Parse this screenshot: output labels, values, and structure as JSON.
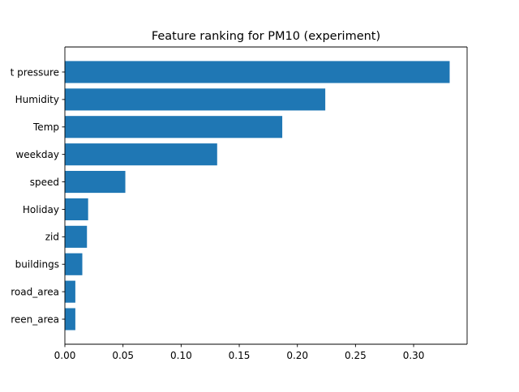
{
  "chart_data": {
    "type": "bar",
    "orientation": "horizontal",
    "title": "Feature ranking for PM10 (experiment)",
    "xlabel": "",
    "ylabel": "",
    "bar_color": "#1f77b4",
    "xlim": [
      0,
      0.346
    ],
    "xticks": [
      {
        "value": 0.0,
        "label": "0.00"
      },
      {
        "value": 0.05,
        "label": "0.05"
      },
      {
        "value": 0.1,
        "label": "0.10"
      },
      {
        "value": 0.15,
        "label": "0.15"
      },
      {
        "value": 0.2,
        "label": "0.20"
      },
      {
        "value": 0.25,
        "label": "0.25"
      },
      {
        "value": 0.3,
        "label": "0.30"
      }
    ],
    "categories": [
      "t pressure",
      "Humidity",
      "Temp",
      "weekday",
      "speed",
      "Holiday",
      "zid",
      "buildings",
      "road_area",
      "reen_area"
    ],
    "values": [
      0.331,
      0.224,
      0.187,
      0.131,
      0.052,
      0.02,
      0.019,
      0.015,
      0.009,
      0.009
    ],
    "grid": false,
    "legend": "none"
  }
}
